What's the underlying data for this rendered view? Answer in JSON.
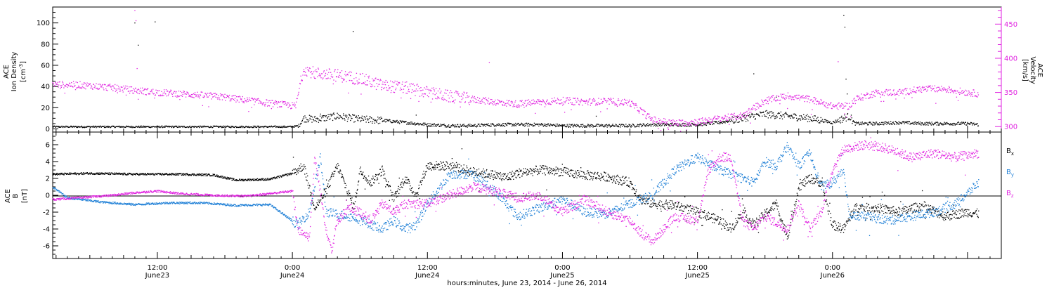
{
  "xlabel": "hours:minutes, June 23, 2014 - June 26, 2014",
  "x_ticks": [
    {
      "label": "12:00",
      "sub": "June23"
    },
    {
      "label": "0:00",
      "sub": "June24"
    },
    {
      "label": "12:00",
      "sub": "June24"
    },
    {
      "label": "0:00",
      "sub": "June25"
    },
    {
      "label": "12:00",
      "sub": "June25"
    },
    {
      "label": "0:00",
      "sub": "June26"
    }
  ],
  "top_panel": {
    "left_label_1": "ACE",
    "left_label_2": "Ion Density",
    "left_unit": "[cm",
    "left_unit_sup": "-3",
    "left_unit_end": "]",
    "right_label_1": "ACE",
    "right_label_2": "Velocity",
    "right_unit": "[km/s]",
    "left_ticks": [
      "0",
      "20",
      "40",
      "60",
      "80",
      "100"
    ],
    "right_ticks": [
      "300",
      "350",
      "400",
      "450"
    ]
  },
  "bottom_panel": {
    "label_1": "ACE",
    "label_2": "B",
    "label_3": "[nT]",
    "left_ticks": [
      "-6",
      "-4",
      "-2",
      "0",
      "2",
      "4",
      "6"
    ],
    "legend": [
      {
        "name": "B",
        "sub": "x",
        "color": "#000000"
      },
      {
        "name": "B",
        "sub": "y",
        "color": "#1e7fd6"
      },
      {
        "name": "B",
        "sub": "z",
        "color": "#e020e0"
      }
    ]
  },
  "colors": {
    "density": "#000000",
    "velocity": "#e020e0",
    "bx": "#000000",
    "by": "#1e7fd6",
    "bz": "#e020e0",
    "right_axis": "#e020e0"
  },
  "chart_data": [
    {
      "type": "scatter",
      "title": "",
      "x_unit": "hours since June 23, 2014 00:00",
      "x_range": [
        2.7,
        87.0
      ],
      "series": [
        {
          "name": "Ion Density",
          "axis": "left",
          "ylim": [
            -3,
            115
          ],
          "points": [
            [
              2.7,
              2
            ],
            [
              8,
              2
            ],
            [
              14,
              2
            ],
            [
              20,
              2
            ],
            [
              24,
              2
            ],
            [
              24.6,
              3
            ],
            [
              25,
              10
            ],
            [
              26,
              9
            ],
            [
              28,
              12
            ],
            [
              30,
              9
            ],
            [
              32,
              8
            ],
            [
              34,
              6
            ],
            [
              36,
              4
            ],
            [
              38,
              3
            ],
            [
              40,
              3
            ],
            [
              42,
              4
            ],
            [
              44,
              4
            ],
            [
              46,
              4
            ],
            [
              48,
              3
            ],
            [
              50,
              3
            ],
            [
              52,
              3
            ],
            [
              54,
              3
            ],
            [
              56,
              4
            ],
            [
              58,
              4
            ],
            [
              60,
              4
            ],
            [
              62,
              6
            ],
            [
              64,
              10
            ],
            [
              66,
              14
            ],
            [
              68,
              12
            ],
            [
              70,
              10
            ],
            [
              72,
              6
            ],
            [
              73.5,
              12
            ],
            [
              74,
              5
            ],
            [
              76,
              5
            ],
            [
              78,
              6
            ],
            [
              80,
              5
            ],
            [
              82,
              5
            ],
            [
              84,
              5
            ],
            [
              85,
              4
            ]
          ],
          "spikes": [
            [
              10,
              100
            ],
            [
              10.3,
              79
            ],
            [
              11.8,
              101
            ],
            [
              26.5,
              14
            ],
            [
              29.4,
              92
            ],
            [
              35,
              13
            ],
            [
              51,
              12
            ],
            [
              65,
              52
            ],
            [
              67,
              30
            ],
            [
              73,
              107
            ],
            [
              73.1,
              96
            ],
            [
              73.2,
              47
            ],
            [
              73.3,
              33
            ]
          ]
        },
        {
          "name": "Velocity",
          "axis": "right",
          "ylim": [
            292,
            475
          ],
          "points": [
            [
              2.7,
              362
            ],
            [
              5,
              361
            ],
            [
              8,
              357
            ],
            [
              10,
              353
            ],
            [
              12,
              350
            ],
            [
              15,
              347
            ],
            [
              18,
              343
            ],
            [
              21,
              336
            ],
            [
              24.3,
              330
            ],
            [
              25,
              385
            ],
            [
              26,
              378
            ],
            [
              28,
              375
            ],
            [
              30,
              370
            ],
            [
              32,
              360
            ],
            [
              34,
              357
            ],
            [
              36,
              350
            ],
            [
              38,
              344
            ],
            [
              40,
              340
            ],
            [
              42,
              336
            ],
            [
              44,
              333
            ],
            [
              46,
              336
            ],
            [
              48,
              338
            ],
            [
              50,
              336
            ],
            [
              52,
              337
            ],
            [
              54,
              335
            ],
            [
              56,
              310
            ],
            [
              58,
              305
            ],
            [
              60,
              307
            ],
            [
              62,
              312
            ],
            [
              64,
              316
            ],
            [
              66,
              338
            ],
            [
              68,
              345
            ],
            [
              70,
              340
            ],
            [
              72,
              330
            ],
            [
              73.5,
              330
            ],
            [
              74,
              340
            ],
            [
              76,
              350
            ],
            [
              78,
              350
            ],
            [
              80,
              355
            ],
            [
              82,
              355
            ],
            [
              84,
              350
            ],
            [
              85,
              348
            ]
          ],
          "spikes": [
            [
              10,
              470
            ],
            [
              10.1,
              455
            ],
            [
              10.2,
              385
            ],
            [
              10.3,
              340
            ],
            [
              41.5,
              394
            ],
            [
              72.5,
              395
            ]
          ]
        }
      ]
    },
    {
      "type": "scatter",
      "title": "",
      "x_unit": "hours since June 23, 2014 00:00",
      "x_range": [
        2.7,
        87.0
      ],
      "ylim": [
        -7.5,
        7.5
      ],
      "series": [
        {
          "name": "Bx",
          "color": "#000000",
          "points": [
            [
              2.7,
              2.5
            ],
            [
              6,
              2.6
            ],
            [
              10,
              2.5
            ],
            [
              14,
              2.5
            ],
            [
              17,
              2.4
            ],
            [
              19,
              1.8
            ],
            [
              22,
              1.9
            ],
            [
              24,
              2.6
            ],
            [
              25,
              3.5
            ],
            [
              26,
              -1.5
            ],
            [
              27,
              0.5
            ],
            [
              28,
              3.5
            ],
            [
              29.5,
              -1.5
            ],
            [
              30,
              3
            ],
            [
              31,
              1.5
            ],
            [
              32,
              3
            ],
            [
              33,
              -0.5
            ],
            [
              34,
              2
            ],
            [
              35,
              0
            ],
            [
              36,
              3.5
            ],
            [
              38,
              3.5
            ],
            [
              40,
              2.8
            ],
            [
              42,
              2.4
            ],
            [
              43,
              2.1
            ],
            [
              44,
              2.6
            ],
            [
              46,
              3
            ],
            [
              48,
              2.8
            ],
            [
              50,
              2.4
            ],
            [
              52,
              2.2
            ],
            [
              54,
              1.5
            ],
            [
              55,
              -0.5
            ],
            [
              56,
              -1
            ],
            [
              58,
              -1.2
            ],
            [
              60,
              -2
            ],
            [
              62,
              -3
            ],
            [
              63,
              -4
            ],
            [
              64,
              -2
            ],
            [
              65,
              -3.5
            ],
            [
              67,
              -1
            ],
            [
              68,
              -5
            ],
            [
              69,
              1
            ],
            [
              70,
              2
            ],
            [
              71,
              1.5
            ],
            [
              72,
              -3.5
            ],
            [
              73,
              -4
            ],
            [
              74,
              -1.5
            ],
            [
              76,
              -1.5
            ],
            [
              78,
              -2
            ],
            [
              80,
              -1.2
            ],
            [
              82,
              -2.5
            ],
            [
              84,
              -2
            ],
            [
              85,
              -2.2
            ]
          ]
        },
        {
          "name": "By",
          "color": "#1e7fd6",
          "points": [
            [
              2.7,
              1
            ],
            [
              4,
              -0.3
            ],
            [
              7,
              -0.8
            ],
            [
              10,
              -1.1
            ],
            [
              13,
              -0.9
            ],
            [
              16,
              -0.9
            ],
            [
              19,
              -1.2
            ],
            [
              22,
              -1.1
            ],
            [
              24.5,
              -3.5
            ],
            [
              25.5,
              -2
            ],
            [
              26.5,
              4.5
            ],
            [
              27,
              -2
            ],
            [
              29,
              -2.5
            ],
            [
              30,
              -2.8
            ],
            [
              31,
              -3.5
            ],
            [
              32,
              -4
            ],
            [
              33,
              -3
            ],
            [
              34,
              -4
            ],
            [
              35,
              -3.5
            ],
            [
              36,
              -1
            ],
            [
              38,
              2.5
            ],
            [
              40,
              2.5
            ],
            [
              42,
              0.5
            ],
            [
              44,
              -2.5
            ],
            [
              46,
              -1.5
            ],
            [
              48,
              -0.5
            ],
            [
              50,
              -2
            ],
            [
              52,
              -2.2
            ],
            [
              54,
              -1
            ],
            [
              56,
              0
            ],
            [
              58,
              3
            ],
            [
              60,
              4.5
            ],
            [
              62,
              3
            ],
            [
              64,
              2
            ],
            [
              65,
              1.5
            ],
            [
              66,
              4
            ],
            [
              67,
              3.5
            ],
            [
              68,
              5.8
            ],
            [
              69,
              3.5
            ],
            [
              70,
              5
            ],
            [
              71,
              1
            ],
            [
              72,
              1.5
            ],
            [
              73,
              3
            ],
            [
              73.5,
              -2.5
            ],
            [
              75,
              -2.5
            ],
            [
              77,
              -3
            ],
            [
              79,
              -2.5
            ],
            [
              81,
              -2
            ],
            [
              83,
              -1
            ],
            [
              85,
              1.5
            ]
          ]
        },
        {
          "name": "Bz",
          "color": "#e020e0",
          "points": [
            [
              2.7,
              -0.5
            ],
            [
              5,
              -0.3
            ],
            [
              8,
              0
            ],
            [
              10,
              0.3
            ],
            [
              12,
              0.5
            ],
            [
              14,
              0.2
            ],
            [
              17,
              0
            ],
            [
              20,
              -0.1
            ],
            [
              24,
              0.5
            ],
            [
              24.5,
              -4
            ],
            [
              25.5,
              -5
            ],
            [
              26,
              4.5
            ],
            [
              27,
              -4
            ],
            [
              27.5,
              -6.5
            ],
            [
              28,
              -3
            ],
            [
              29,
              -1.5
            ],
            [
              30,
              -2
            ],
            [
              31,
              -3
            ],
            [
              32,
              -1
            ],
            [
              33,
              -2
            ],
            [
              34,
              -1
            ],
            [
              36,
              -1
            ],
            [
              38,
              0
            ],
            [
              40,
              1
            ],
            [
              42,
              0.5
            ],
            [
              44,
              -0.3
            ],
            [
              46,
              0
            ],
            [
              48,
              -2
            ],
            [
              50,
              -0.5
            ],
            [
              52,
              -2
            ],
            [
              54,
              -3
            ],
            [
              55,
              -4.5
            ],
            [
              56,
              -5.5
            ],
            [
              57,
              -4
            ],
            [
              58,
              -2.5
            ],
            [
              60,
              -3
            ],
            [
              61,
              3
            ],
            [
              62,
              4.5
            ],
            [
              63,
              4.5
            ],
            [
              64,
              -3
            ],
            [
              65,
              -4
            ],
            [
              66,
              -2.5
            ],
            [
              68,
              -4
            ],
            [
              69,
              -1
            ],
            [
              70,
              -4
            ],
            [
              71,
              -2
            ],
            [
              72,
              3
            ],
            [
              73,
              5.5
            ],
            [
              75,
              6
            ],
            [
              77,
              5.5
            ],
            [
              79,
              4.5
            ],
            [
              81,
              5
            ],
            [
              83,
              4.5
            ],
            [
              85,
              5
            ]
          ]
        }
      ]
    }
  ]
}
